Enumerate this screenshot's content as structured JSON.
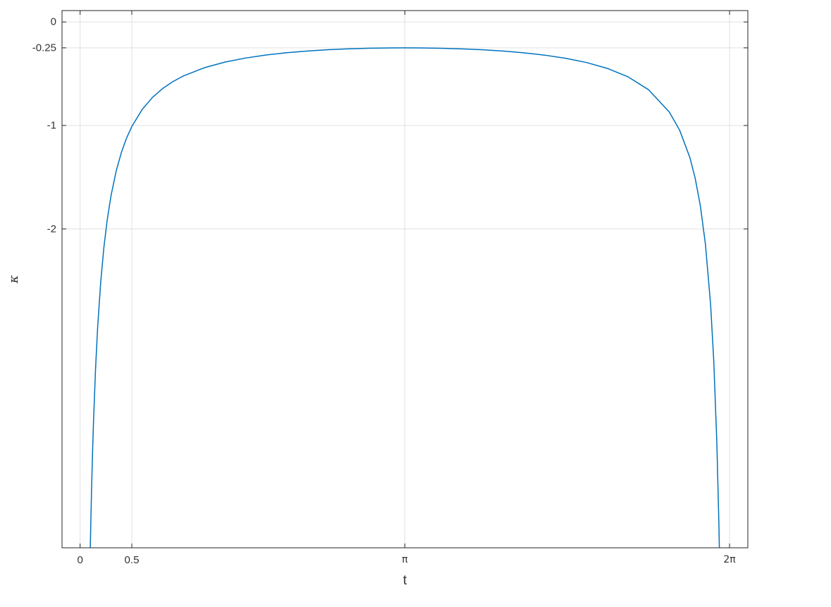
{
  "figure": {
    "background_color": "#ffffff",
    "axis_color": "#262626",
    "grid_color": "#e0e0e0",
    "tick_label_color": "#333333"
  },
  "chart_data": {
    "type": "line",
    "title": "",
    "xlabel": "t",
    "ylabel": "κ",
    "grid": true,
    "legend": "none",
    "xlim": [
      -0.175,
      6.46
    ],
    "ylim": [
      -5.08,
      0.11
    ],
    "x_ticks": [
      {
        "value": 0,
        "label": "0"
      },
      {
        "value": 0.5,
        "label": "0.5"
      },
      {
        "value": 3.14159,
        "label": "π"
      },
      {
        "value": 6.28319,
        "label": "2π"
      }
    ],
    "y_ticks": [
      {
        "value": 0,
        "label": "0"
      },
      {
        "value": -0.25,
        "label": "-0.25"
      },
      {
        "value": -1,
        "label": "-1"
      },
      {
        "value": -2,
        "label": "-2"
      }
    ],
    "series": [
      {
        "color": "#0072BD",
        "line_width": 1.5,
        "points": [
          [
            0.085,
            -5.8841
          ],
          [
            0.09,
            -5.5575
          ],
          [
            0.1,
            -5.0021
          ],
          [
            0.11,
            -4.5477
          ],
          [
            0.12,
            -4.1692
          ],
          [
            0.13,
            -3.8489
          ],
          [
            0.15,
            -3.3365
          ],
          [
            0.17,
            -2.9447
          ],
          [
            0.2,
            -2.5042
          ],
          [
            0.23,
            -2.1787
          ],
          [
            0.26,
            -1.9285
          ],
          [
            0.3,
            -1.6729
          ],
          [
            0.35,
            -1.4359
          ],
          [
            0.4,
            -1.2584
          ],
          [
            0.45,
            -1.1206
          ],
          [
            0.5,
            -1.0105
          ],
          [
            0.6,
            -0.846
          ],
          [
            0.7,
            -0.7291
          ],
          [
            0.8,
            -0.642
          ],
          [
            0.9,
            -0.5748
          ],
          [
            1.0,
            -0.5215
          ],
          [
            1.2,
            -0.4428
          ],
          [
            1.4,
            -0.3881
          ],
          [
            1.6,
            -0.3485
          ],
          [
            1.8,
            -0.3192
          ],
          [
            2.0,
            -0.2971
          ],
          [
            2.2,
            -0.2805
          ],
          [
            2.4,
            -0.2682
          ],
          [
            2.6,
            -0.2595
          ],
          [
            2.8,
            -0.2537
          ],
          [
            3.0,
            -0.2506
          ],
          [
            3.1416,
            -0.25
          ],
          [
            3.3,
            -0.2508
          ],
          [
            3.5,
            -0.2541
          ],
          [
            3.7,
            -0.2601
          ],
          [
            3.9,
            -0.2691
          ],
          [
            4.1,
            -0.2817
          ],
          [
            4.3,
            -0.2987
          ],
          [
            4.5,
            -0.3213
          ],
          [
            4.7,
            -0.3514
          ],
          [
            4.9,
            -0.392
          ],
          [
            5.1,
            -0.4483
          ],
          [
            5.3,
            -0.5297
          ],
          [
            5.5,
            -0.655
          ],
          [
            5.7,
            -0.8696
          ],
          [
            5.8,
            -1.0449
          ],
          [
            5.9,
            -1.3119
          ],
          [
            5.95,
            -1.5076
          ],
          [
            6.0,
            -1.7715
          ],
          [
            6.05,
            -2.1491
          ],
          [
            6.1,
            -2.7333
          ],
          [
            6.13,
            -3.2672
          ],
          [
            6.16,
            -4.0615
          ],
          [
            6.18,
            -4.8478
          ],
          [
            6.19,
            -5.3676
          ],
          [
            6.198,
            -5.8713
          ]
        ]
      }
    ]
  }
}
